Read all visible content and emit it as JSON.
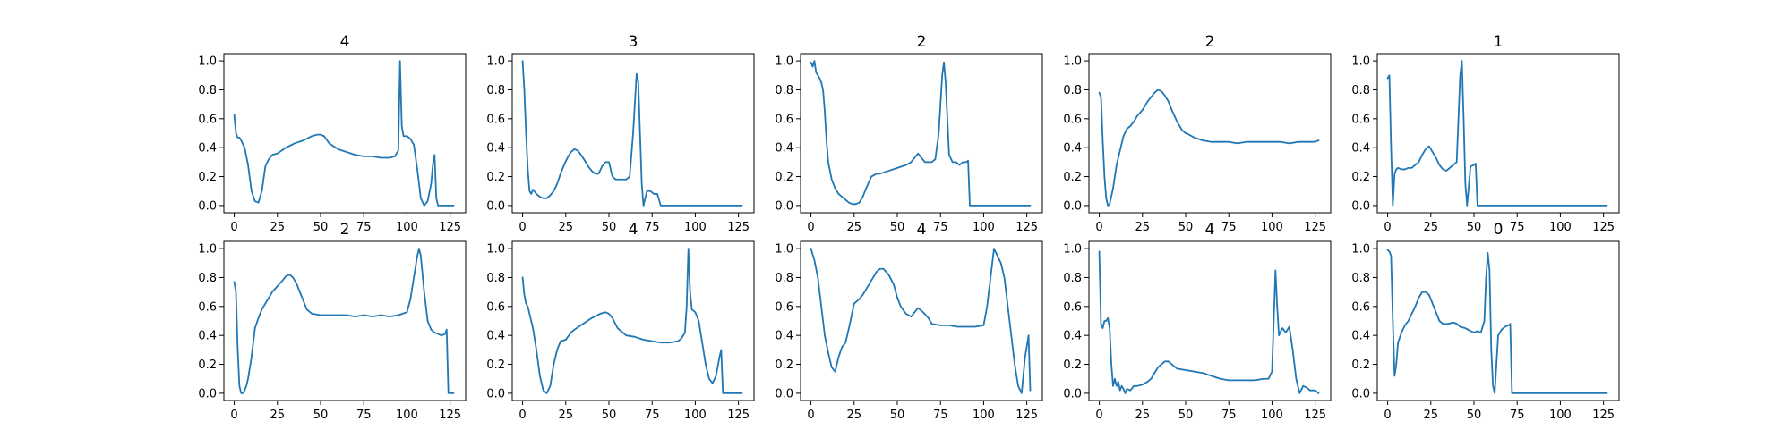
{
  "colors": {
    "series": "#1f77b4"
  },
  "layout": {
    "rows": 2,
    "cols": 5
  },
  "chart_data": [
    {
      "type": "line",
      "title": "4",
      "xlim": [
        -6,
        134
      ],
      "ylim": [
        -0.05,
        1.05
      ],
      "xticks": [
        0,
        25,
        50,
        75,
        100,
        125
      ],
      "yticks": [
        0.0,
        0.2,
        0.4,
        0.6,
        0.8,
        1.0
      ],
      "x": [
        0,
        1,
        2,
        3,
        4,
        6,
        8,
        10,
        12,
        14,
        16,
        18,
        20,
        22,
        25,
        30,
        35,
        40,
        45,
        48,
        50,
        52,
        55,
        60,
        65,
        70,
        75,
        80,
        85,
        90,
        93,
        95,
        96,
        97,
        98,
        100,
        102,
        104,
        106,
        108,
        110,
        112,
        114,
        115,
        116,
        117,
        118,
        120,
        122,
        125,
        127
      ],
      "y": [
        0.63,
        0.5,
        0.47,
        0.47,
        0.45,
        0.4,
        0.28,
        0.1,
        0.03,
        0.02,
        0.1,
        0.27,
        0.32,
        0.35,
        0.36,
        0.4,
        0.43,
        0.45,
        0.48,
        0.49,
        0.49,
        0.48,
        0.43,
        0.39,
        0.37,
        0.35,
        0.34,
        0.34,
        0.33,
        0.33,
        0.34,
        0.38,
        1.0,
        0.55,
        0.48,
        0.48,
        0.46,
        0.42,
        0.25,
        0.05,
        0.0,
        0.03,
        0.15,
        0.28,
        0.35,
        0.05,
        0.0,
        0.0,
        0.0,
        0.0,
        0.0
      ]
    },
    {
      "type": "line",
      "title": "3",
      "xlim": [
        -6,
        134
      ],
      "ylim": [
        -0.05,
        1.05
      ],
      "xticks": [
        0,
        25,
        50,
        75,
        100,
        125
      ],
      "yticks": [
        0.0,
        0.2,
        0.4,
        0.6,
        0.8,
        1.0
      ],
      "x": [
        0,
        1,
        2,
        3,
        4,
        5,
        6,
        8,
        10,
        12,
        14,
        16,
        18,
        20,
        22,
        24,
        26,
        28,
        30,
        32,
        35,
        38,
        40,
        42,
        44,
        46,
        48,
        50,
        52,
        54,
        56,
        58,
        60,
        62,
        64,
        66,
        67,
        68,
        69,
        70,
        71,
        72,
        74,
        76,
        78,
        80,
        85,
        90,
        95,
        100,
        110,
        120,
        127
      ],
      "y": [
        1.0,
        0.8,
        0.5,
        0.25,
        0.1,
        0.08,
        0.11,
        0.08,
        0.06,
        0.05,
        0.05,
        0.07,
        0.1,
        0.15,
        0.22,
        0.28,
        0.33,
        0.37,
        0.39,
        0.38,
        0.33,
        0.27,
        0.24,
        0.22,
        0.22,
        0.27,
        0.3,
        0.3,
        0.2,
        0.18,
        0.18,
        0.18,
        0.18,
        0.2,
        0.5,
        0.91,
        0.85,
        0.5,
        0.15,
        0.0,
        0.05,
        0.1,
        0.1,
        0.08,
        0.08,
        0.0,
        0.0,
        0.0,
        0.0,
        0.0,
        0.0,
        0.0,
        0.0
      ]
    },
    {
      "type": "line",
      "title": "2",
      "xlim": [
        -6,
        134
      ],
      "ylim": [
        -0.05,
        1.05
      ],
      "xticks": [
        0,
        25,
        50,
        75,
        100,
        125
      ],
      "yticks": [
        0.0,
        0.2,
        0.4,
        0.6,
        0.8,
        1.0
      ],
      "x": [
        0,
        1,
        2,
        3,
        4,
        5,
        6,
        7,
        8,
        9,
        10,
        12,
        14,
        16,
        18,
        20,
        22,
        24,
        26,
        28,
        30,
        32,
        35,
        38,
        40,
        45,
        50,
        55,
        58,
        60,
        62,
        64,
        66,
        70,
        72,
        74,
        75,
        76,
        77,
        78,
        80,
        82,
        84,
        86,
        88,
        90,
        91,
        92,
        95,
        100,
        110,
        120,
        127
      ],
      "y": [
        0.99,
        0.96,
        1.0,
        0.92,
        0.9,
        0.88,
        0.85,
        0.8,
        0.65,
        0.45,
        0.3,
        0.18,
        0.12,
        0.08,
        0.06,
        0.04,
        0.02,
        0.01,
        0.01,
        0.02,
        0.06,
        0.12,
        0.2,
        0.22,
        0.22,
        0.24,
        0.26,
        0.28,
        0.3,
        0.33,
        0.36,
        0.33,
        0.3,
        0.3,
        0.32,
        0.5,
        0.7,
        0.9,
        0.99,
        0.85,
        0.35,
        0.3,
        0.3,
        0.28,
        0.3,
        0.3,
        0.31,
        0.0,
        0.0,
        0.0,
        0.0,
        0.0,
        0.0
      ]
    },
    {
      "type": "line",
      "title": "2",
      "xlim": [
        -6,
        134
      ],
      "ylim": [
        -0.05,
        1.05
      ],
      "xticks": [
        0,
        25,
        50,
        75,
        100,
        125
      ],
      "yticks": [
        0.0,
        0.2,
        0.4,
        0.6,
        0.8,
        1.0
      ],
      "x": [
        0,
        1,
        2,
        3,
        4,
        5,
        6,
        8,
        10,
        12,
        14,
        16,
        18,
        20,
        22,
        25,
        28,
        30,
        32,
        34,
        36,
        38,
        40,
        42,
        45,
        48,
        50,
        52,
        55,
        60,
        65,
        70,
        75,
        80,
        85,
        90,
        95,
        100,
        105,
        110,
        115,
        120,
        125,
        127
      ],
      "y": [
        0.78,
        0.75,
        0.45,
        0.2,
        0.05,
        0.0,
        0.01,
        0.12,
        0.28,
        0.38,
        0.48,
        0.53,
        0.55,
        0.58,
        0.62,
        0.66,
        0.72,
        0.75,
        0.78,
        0.8,
        0.79,
        0.76,
        0.72,
        0.66,
        0.58,
        0.52,
        0.5,
        0.49,
        0.47,
        0.45,
        0.44,
        0.44,
        0.44,
        0.43,
        0.44,
        0.44,
        0.44,
        0.44,
        0.44,
        0.43,
        0.44,
        0.44,
        0.44,
        0.45
      ]
    },
    {
      "type": "line",
      "title": "1",
      "xlim": [
        -6,
        134
      ],
      "ylim": [
        -0.05,
        1.05
      ],
      "xticks": [
        0,
        25,
        50,
        75,
        100,
        125
      ],
      "yticks": [
        0.0,
        0.2,
        0.4,
        0.6,
        0.8,
        1.0
      ],
      "x": [
        0,
        1,
        2,
        3,
        4,
        5,
        6,
        8,
        10,
        12,
        14,
        16,
        18,
        20,
        22,
        24,
        26,
        28,
        30,
        32,
        34,
        36,
        38,
        40,
        41,
        42,
        43,
        44,
        45,
        46,
        48,
        50,
        51,
        52,
        55,
        60,
        70,
        80,
        90,
        100,
        110,
        120,
        127
      ],
      "y": [
        0.88,
        0.9,
        0.4,
        0.0,
        0.22,
        0.25,
        0.26,
        0.25,
        0.25,
        0.26,
        0.26,
        0.28,
        0.3,
        0.35,
        0.39,
        0.41,
        0.37,
        0.33,
        0.28,
        0.25,
        0.24,
        0.26,
        0.28,
        0.3,
        0.6,
        0.9,
        1.0,
        0.6,
        0.15,
        0.0,
        0.27,
        0.28,
        0.29,
        0.0,
        0.0,
        0.0,
        0.0,
        0.0,
        0.0,
        0.0,
        0.0,
        0.0,
        0.0
      ]
    },
    {
      "type": "line",
      "title": "2",
      "xlim": [
        -6,
        134
      ],
      "ylim": [
        -0.05,
        1.05
      ],
      "xticks": [
        0,
        25,
        50,
        75,
        100,
        125
      ],
      "yticks": [
        0.0,
        0.2,
        0.4,
        0.6,
        0.8,
        1.0
      ],
      "x": [
        0,
        1,
        2,
        3,
        4,
        5,
        6,
        7,
        8,
        10,
        12,
        14,
        16,
        18,
        20,
        22,
        25,
        28,
        30,
        32,
        34,
        36,
        38,
        40,
        42,
        45,
        50,
        55,
        60,
        65,
        70,
        75,
        80,
        85,
        90,
        95,
        100,
        102,
        104,
        106,
        107,
        108,
        110,
        112,
        114,
        116,
        118,
        120,
        122,
        123,
        124,
        125,
        127
      ],
      "y": [
        0.77,
        0.7,
        0.3,
        0.05,
        0.0,
        0.0,
        0.02,
        0.05,
        0.1,
        0.25,
        0.45,
        0.52,
        0.58,
        0.62,
        0.66,
        0.7,
        0.74,
        0.78,
        0.81,
        0.82,
        0.8,
        0.76,
        0.7,
        0.64,
        0.58,
        0.55,
        0.54,
        0.54,
        0.54,
        0.54,
        0.53,
        0.54,
        0.53,
        0.54,
        0.53,
        0.54,
        0.56,
        0.65,
        0.8,
        0.95,
        1.0,
        0.95,
        0.7,
        0.5,
        0.44,
        0.42,
        0.41,
        0.4,
        0.41,
        0.44,
        0.0,
        0.0,
        0.0
      ]
    },
    {
      "type": "line",
      "title": "4",
      "xlim": [
        -6,
        134
      ],
      "ylim": [
        -0.05,
        1.05
      ],
      "xticks": [
        0,
        25,
        50,
        75,
        100,
        125
      ],
      "yticks": [
        0.0,
        0.2,
        0.4,
        0.6,
        0.8,
        1.0
      ],
      "x": [
        0,
        1,
        2,
        3,
        4,
        6,
        8,
        10,
        12,
        14,
        16,
        18,
        20,
        22,
        25,
        28,
        30,
        35,
        40,
        45,
        48,
        50,
        52,
        55,
        60,
        65,
        70,
        75,
        80,
        85,
        90,
        92,
        94,
        95,
        96,
        97,
        98,
        100,
        102,
        104,
        106,
        108,
        110,
        112,
        114,
        115,
        116,
        117,
        118,
        120,
        127
      ],
      "y": [
        0.8,
        0.68,
        0.62,
        0.6,
        0.55,
        0.45,
        0.3,
        0.12,
        0.02,
        0.0,
        0.05,
        0.2,
        0.3,
        0.36,
        0.37,
        0.42,
        0.44,
        0.48,
        0.52,
        0.55,
        0.56,
        0.55,
        0.52,
        0.45,
        0.4,
        0.39,
        0.37,
        0.36,
        0.35,
        0.35,
        0.36,
        0.38,
        0.42,
        0.6,
        1.0,
        0.7,
        0.58,
        0.56,
        0.5,
        0.35,
        0.2,
        0.1,
        0.07,
        0.12,
        0.25,
        0.3,
        0.0,
        0.0,
        0.0,
        0.0,
        0.0
      ]
    },
    {
      "type": "line",
      "title": "4",
      "xlim": [
        -6,
        134
      ],
      "ylim": [
        -0.05,
        1.05
      ],
      "xticks": [
        0,
        25,
        50,
        75,
        100,
        125
      ],
      "yticks": [
        0.0,
        0.2,
        0.4,
        0.6,
        0.8,
        1.0
      ],
      "x": [
        0,
        2,
        4,
        6,
        8,
        10,
        12,
        14,
        16,
        18,
        20,
        22,
        25,
        28,
        30,
        32,
        35,
        38,
        40,
        42,
        45,
        48,
        50,
        52,
        55,
        58,
        60,
        62,
        65,
        68,
        70,
        75,
        80,
        85,
        90,
        95,
        100,
        102,
        104,
        106,
        108,
        110,
        112,
        114,
        116,
        118,
        120,
        122,
        124,
        126,
        127
      ],
      "y": [
        1.0,
        0.92,
        0.8,
        0.6,
        0.4,
        0.28,
        0.18,
        0.15,
        0.25,
        0.32,
        0.35,
        0.45,
        0.62,
        0.65,
        0.68,
        0.72,
        0.78,
        0.84,
        0.86,
        0.86,
        0.82,
        0.75,
        0.66,
        0.6,
        0.55,
        0.53,
        0.56,
        0.59,
        0.56,
        0.52,
        0.48,
        0.47,
        0.47,
        0.46,
        0.46,
        0.46,
        0.47,
        0.6,
        0.8,
        1.0,
        0.95,
        0.9,
        0.8,
        0.6,
        0.4,
        0.2,
        0.05,
        0.0,
        0.25,
        0.4,
        0.02
      ]
    },
    {
      "type": "line",
      "title": "4",
      "xlim": [
        -6,
        134
      ],
      "ylim": [
        -0.05,
        1.05
      ],
      "xticks": [
        0,
        25,
        50,
        75,
        100,
        125
      ],
      "yticks": [
        0.0,
        0.2,
        0.4,
        0.6,
        0.8,
        1.0
      ],
      "x": [
        0,
        1,
        2,
        3,
        4,
        5,
        6,
        7,
        8,
        9,
        10,
        11,
        12,
        13,
        14,
        15,
        16,
        18,
        20,
        22,
        25,
        28,
        30,
        32,
        34,
        36,
        38,
        40,
        42,
        45,
        50,
        55,
        60,
        65,
        70,
        75,
        80,
        85,
        90,
        95,
        98,
        100,
        101,
        102,
        103,
        104,
        106,
        108,
        110,
        112,
        114,
        116,
        118,
        120,
        122,
        125,
        127
      ],
      "y": [
        0.98,
        0.48,
        0.45,
        0.5,
        0.5,
        0.52,
        0.45,
        0.2,
        0.05,
        0.1,
        0.05,
        0.08,
        0.02,
        0.05,
        0.03,
        0.0,
        0.03,
        0.02,
        0.05,
        0.05,
        0.06,
        0.08,
        0.1,
        0.14,
        0.18,
        0.2,
        0.22,
        0.22,
        0.2,
        0.17,
        0.16,
        0.15,
        0.14,
        0.12,
        0.1,
        0.09,
        0.09,
        0.09,
        0.09,
        0.1,
        0.1,
        0.15,
        0.5,
        0.85,
        0.6,
        0.4,
        0.45,
        0.42,
        0.46,
        0.3,
        0.1,
        0.0,
        0.05,
        0.04,
        0.02,
        0.02,
        0.0
      ]
    },
    {
      "type": "line",
      "title": "0",
      "xlim": [
        -6,
        134
      ],
      "ylim": [
        -0.05,
        1.05
      ],
      "xticks": [
        0,
        25,
        50,
        75,
        100,
        125
      ],
      "yticks": [
        0.0,
        0.2,
        0.4,
        0.6,
        0.8,
        1.0
      ],
      "x": [
        0,
        1,
        2,
        3,
        4,
        5,
        6,
        8,
        10,
        12,
        14,
        16,
        18,
        20,
        22,
        24,
        26,
        28,
        30,
        32,
        35,
        38,
        40,
        42,
        45,
        48,
        50,
        52,
        54,
        56,
        57,
        58,
        59,
        60,
        61,
        62,
        63,
        64,
        66,
        68,
        70,
        71,
        72,
        75,
        80,
        90,
        100,
        110,
        120,
        127
      ],
      "y": [
        0.99,
        0.98,
        0.95,
        0.5,
        0.12,
        0.2,
        0.35,
        0.42,
        0.47,
        0.5,
        0.55,
        0.6,
        0.66,
        0.7,
        0.7,
        0.68,
        0.62,
        0.56,
        0.5,
        0.48,
        0.48,
        0.49,
        0.48,
        0.46,
        0.45,
        0.43,
        0.42,
        0.43,
        0.42,
        0.5,
        0.8,
        0.97,
        0.85,
        0.3,
        0.05,
        0.0,
        0.2,
        0.4,
        0.44,
        0.46,
        0.47,
        0.48,
        0.0,
        0.0,
        0.0,
        0.0,
        0.0,
        0.0,
        0.0,
        0.0
      ]
    }
  ]
}
